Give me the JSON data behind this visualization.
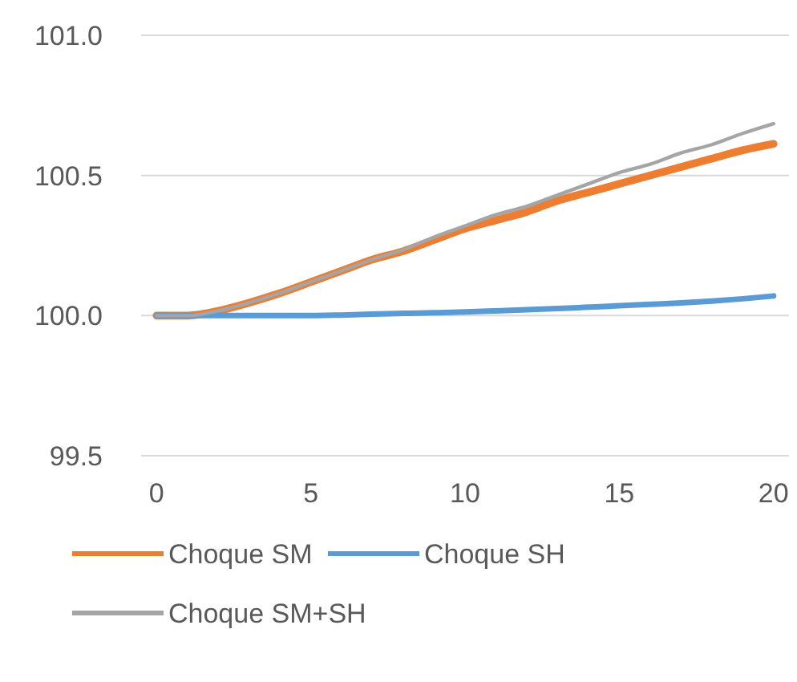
{
  "chart_data": {
    "type": "line",
    "x": [
      0,
      1,
      2,
      3,
      4,
      5,
      6,
      7,
      8,
      9,
      10,
      11,
      12,
      13,
      14,
      15,
      16,
      17,
      18,
      19,
      20
    ],
    "xlim": [
      -0.5,
      20.5
    ],
    "xticks": [
      0,
      5,
      10,
      15,
      20
    ],
    "ylim": [
      99.5,
      101.0
    ],
    "yticks": [
      {
        "value": 99.5,
        "label": "99.5"
      },
      {
        "value": 100.0,
        "label": "100.0"
      },
      {
        "value": 100.5,
        "label": "100.5"
      },
      {
        "value": 101.0,
        "label": "101.0"
      }
    ],
    "grid": "y",
    "legend": "bottom",
    "marker": "none",
    "line_style": "solid",
    "series": [
      {
        "name": "Choque SM",
        "color": "#ed7d31",
        "values": [
          100,
          100,
          100.017,
          100.046,
          100.08,
          100.12,
          100.16,
          100.2,
          100.23,
          100.27,
          100.31,
          100.34,
          100.37,
          100.41,
          100.44,
          100.47,
          100.5,
          100.53,
          100.56,
          100.59,
          100.613
        ]
      },
      {
        "name": "Choque SH",
        "color": "#5b9bd5",
        "values": [
          100,
          100,
          100,
          100,
          100,
          100,
          100.002,
          100.005,
          100.008,
          100.01,
          100.013,
          100.017,
          100.021,
          100.025,
          100.03,
          100.035,
          100.04,
          100.045,
          100.052,
          100.06,
          100.07
        ]
      },
      {
        "name": "Choque SM+SH",
        "color": "#a5a5a5",
        "values": [
          100,
          100,
          100.017,
          100.046,
          100.08,
          100.12,
          100.16,
          100.2,
          100.235,
          100.28,
          100.32,
          100.36,
          100.39,
          100.43,
          100.47,
          100.51,
          100.54,
          100.58,
          100.61,
          100.65,
          100.685
        ]
      }
    ]
  }
}
